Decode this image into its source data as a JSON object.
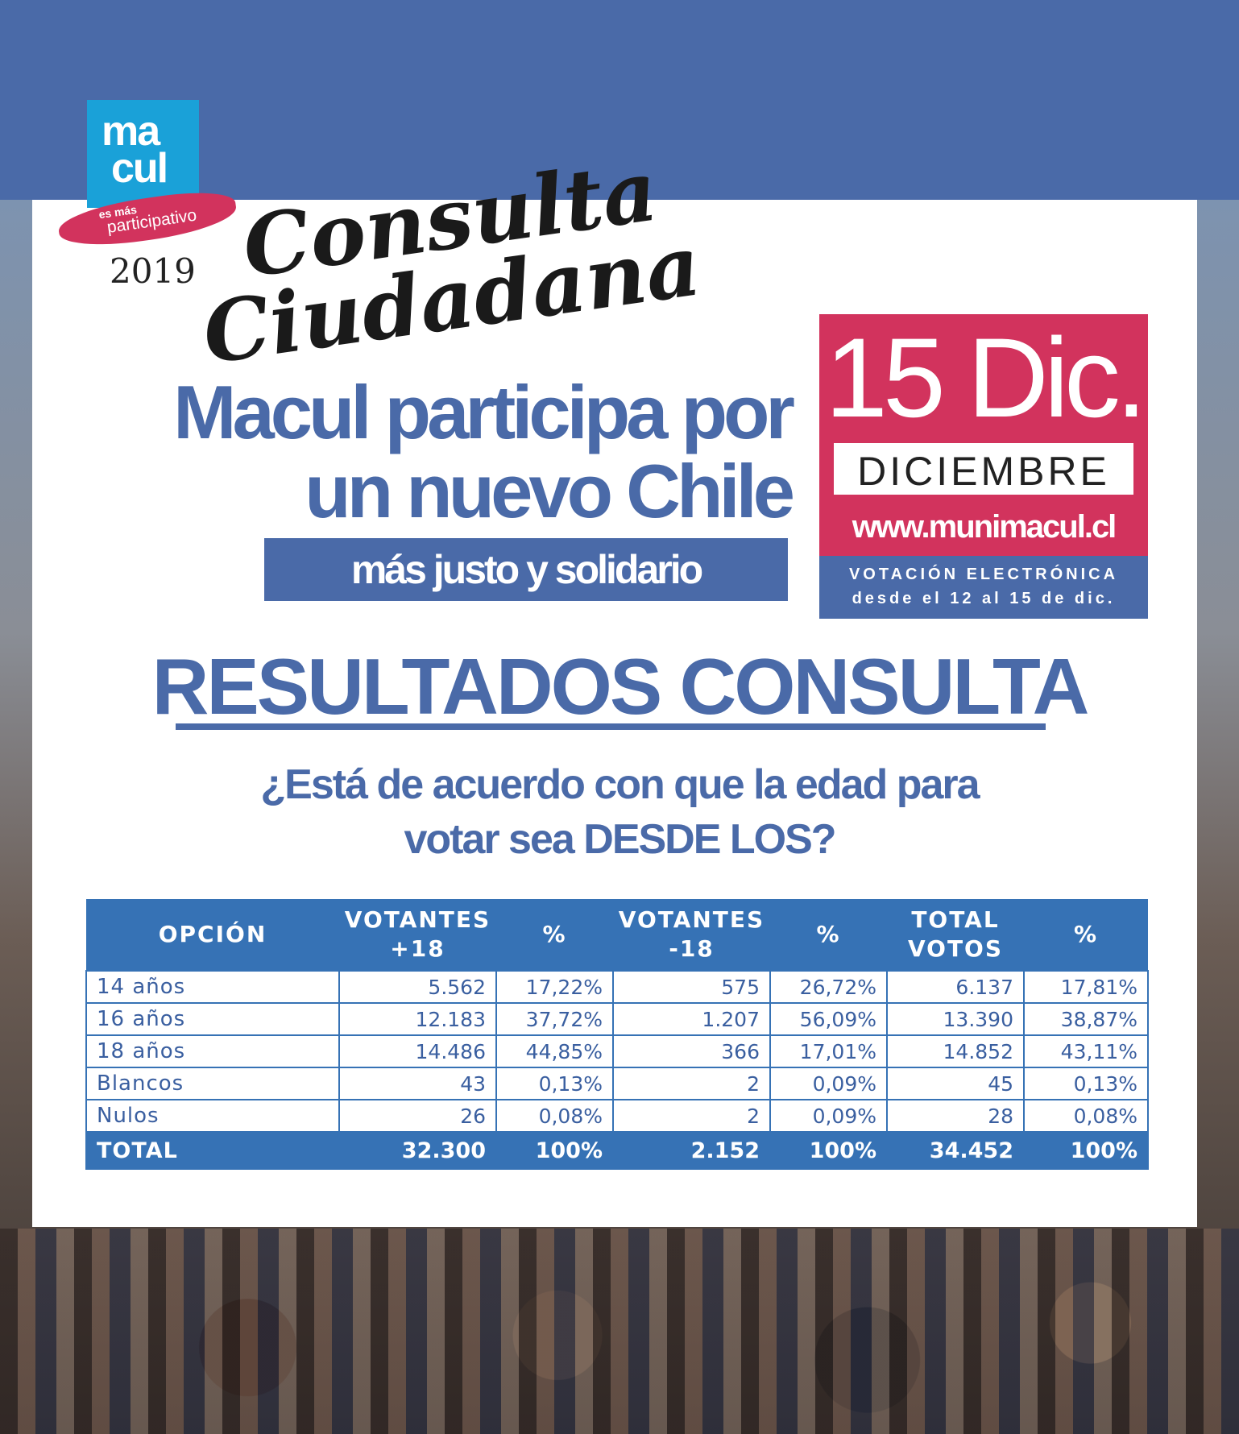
{
  "brand": {
    "logo_line1": "ma",
    "logo_line2": "cul",
    "tag_small": "es más",
    "tag_big": "participativo",
    "year": "2019",
    "script_line1": "Consulta",
    "script_line2": "Ciudadana",
    "colors": {
      "blue": "#4a6aa8",
      "table_blue": "#3672b5",
      "magenta": "#d2335d",
      "logo_cyan": "#1aa1d8"
    }
  },
  "headline": {
    "line1": "Macul participa por",
    "line2": "un nuevo Chile",
    "sub": "más justo y solidario"
  },
  "date_box": {
    "day": "15 Dic.",
    "month": "DICIEMBRE",
    "url": "www.munimacul.cl",
    "info_line1": "VOTACIÓN ELECTRÓNICA",
    "info_line2": "desde el 12 al 15 de dic."
  },
  "results": {
    "title": "RESULTADOS CONSULTA",
    "question_line1": "¿Está de acuerdo con que la edad para",
    "question_line2": "votar sea DESDE LOS?"
  },
  "table": {
    "headers": [
      "OPCIÓN",
      "VOTANTES +18",
      "%",
      "VOTANTES -18",
      "%",
      "TOTAL VOTOS",
      "%"
    ],
    "header_lines": {
      "votantes_mas_1": "VOTANTES",
      "votantes_mas_2": "+18",
      "votantes_menos_1": "VOTANTES",
      "votantes_menos_2": "-18",
      "total_1": "TOTAL",
      "total_2": "VOTOS"
    },
    "rows": [
      [
        "14 años",
        "5.562",
        "17,22%",
        "575",
        "26,72%",
        "6.137",
        "17,81%"
      ],
      [
        "16 años",
        "12.183",
        "37,72%",
        "1.207",
        "56,09%",
        "13.390",
        "38,87%"
      ],
      [
        "18 años",
        "14.486",
        "44,85%",
        "366",
        "17,01%",
        "14.852",
        "43,11%"
      ],
      [
        "Blancos",
        "43",
        "0,13%",
        "2",
        "0,09%",
        "45",
        "0,13%"
      ],
      [
        "Nulos",
        "26",
        "0,08%",
        "2",
        "0,09%",
        "28",
        "0,08%"
      ]
    ],
    "total": [
      "TOTAL",
      "32.300",
      "100%",
      "2.152",
      "100%",
      "34.452",
      "100%"
    ]
  }
}
